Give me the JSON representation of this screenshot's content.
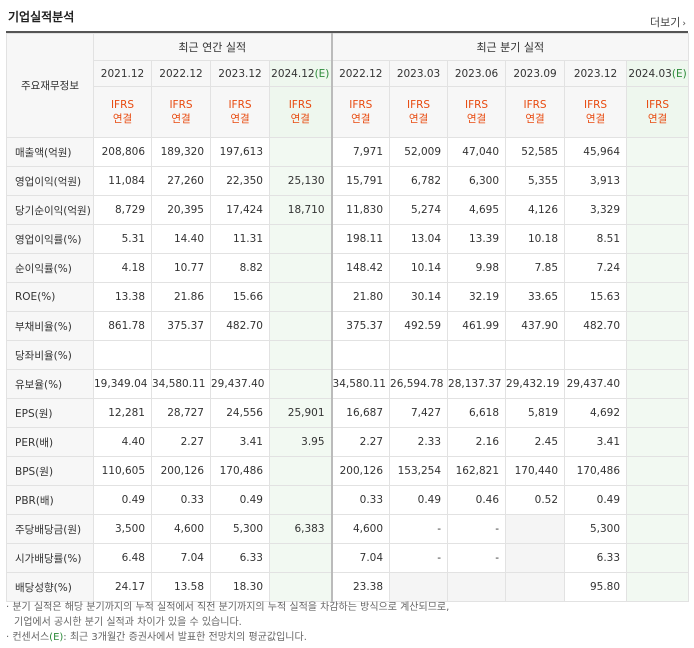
{
  "title": "기업실적분석",
  "more_label": "더보기",
  "header": {
    "row_label": "주요재무정보",
    "annual_group": "최근 연간 실적",
    "quarter_group": "최근 분기 실적",
    "ifrs_line1": "IFRS",
    "ifrs_line2": "연결",
    "annual_periods": [
      {
        "label": "2021.12",
        "est": ""
      },
      {
        "label": "2022.12",
        "est": ""
      },
      {
        "label": "2023.12",
        "est": ""
      },
      {
        "label": "2024.12",
        "est": "(E)"
      }
    ],
    "quarter_periods": [
      {
        "label": "2022.12",
        "est": ""
      },
      {
        "label": "2023.03",
        "est": ""
      },
      {
        "label": "2023.06",
        "est": ""
      },
      {
        "label": "2023.09",
        "est": ""
      },
      {
        "label": "2023.12",
        "est": ""
      },
      {
        "label": "2024.03",
        "est": "(E)"
      }
    ]
  },
  "rows": [
    {
      "label": "매출액(억원)",
      "values": [
        "208,806",
        "189,320",
        "197,613",
        "",
        "7,971",
        "52,009",
        "47,040",
        "52,585",
        "45,964",
        ""
      ]
    },
    {
      "label": "영업이익(억원)",
      "values": [
        "11,084",
        "27,260",
        "22,350",
        "25,130",
        "15,791",
        "6,782",
        "6,300",
        "5,355",
        "3,913",
        ""
      ]
    },
    {
      "label": "당기순이익(억원)",
      "values": [
        "8,729",
        "20,395",
        "17,424",
        "18,710",
        "11,830",
        "5,274",
        "4,695",
        "4,126",
        "3,329",
        ""
      ]
    },
    {
      "label": "영업이익률(%)",
      "values": [
        "5.31",
        "14.40",
        "11.31",
        "",
        "198.11",
        "13.04",
        "13.39",
        "10.18",
        "8.51",
        ""
      ]
    },
    {
      "label": "순이익률(%)",
      "values": [
        "4.18",
        "10.77",
        "8.82",
        "",
        "148.42",
        "10.14",
        "9.98",
        "7.85",
        "7.24",
        ""
      ]
    },
    {
      "label": "ROE(%)",
      "values": [
        "13.38",
        "21.86",
        "15.66",
        "",
        "21.80",
        "30.14",
        "32.19",
        "33.65",
        "15.63",
        ""
      ]
    },
    {
      "label": "부채비율(%)",
      "values": [
        "861.78",
        "375.37",
        "482.70",
        "",
        "375.37",
        "492.59",
        "461.99",
        "437.90",
        "482.70",
        ""
      ]
    },
    {
      "label": "당좌비율(%)",
      "values": [
        "",
        "",
        "",
        "",
        "",
        "",
        "",
        "",
        "",
        ""
      ]
    },
    {
      "label": "유보율(%)",
      "values": [
        "19,349.04",
        "34,580.11",
        "29,437.40",
        "",
        "34,580.11",
        "26,594.78",
        "28,137.37",
        "29,432.19",
        "29,437.40",
        ""
      ]
    },
    {
      "label": "EPS(원)",
      "values": [
        "12,281",
        "28,727",
        "24,556",
        "25,901",
        "16,687",
        "7,427",
        "6,618",
        "5,819",
        "4,692",
        ""
      ]
    },
    {
      "label": "PER(배)",
      "values": [
        "4.40",
        "2.27",
        "3.41",
        "3.95",
        "2.27",
        "2.33",
        "2.16",
        "2.45",
        "3.41",
        ""
      ]
    },
    {
      "label": "BPS(원)",
      "values": [
        "110,605",
        "200,126",
        "170,486",
        "",
        "200,126",
        "153,254",
        "162,821",
        "170,440",
        "170,486",
        ""
      ]
    },
    {
      "label": "PBR(배)",
      "values": [
        "0.49",
        "0.33",
        "0.49",
        "",
        "0.33",
        "0.49",
        "0.46",
        "0.52",
        "0.49",
        ""
      ]
    },
    {
      "label": "주당배당금(원)",
      "values": [
        "3,500",
        "4,600",
        "5,300",
        "6,383",
        "4,600",
        "-",
        "-",
        "",
        "5,300",
        ""
      ]
    },
    {
      "label": "시가배당률(%)",
      "values": [
        "6.48",
        "7.04",
        "6.33",
        "",
        "7.04",
        "-",
        "-",
        "",
        "6.33",
        ""
      ]
    },
    {
      "label": "배당성향(%)",
      "values": [
        "24.17",
        "13.58",
        "18.30",
        "",
        "23.38",
        "",
        "",
        "",
        "95.80",
        ""
      ]
    }
  ],
  "notes": {
    "line1": "· 분기 실적은 해당 분기까지의 누적 실적에서 직전 분기까지의 누적 실적을 차감하는 방식으로 계산되므로,",
    "line2": "기업에서 공시한 분기 실적과 차이가 있을 수 있습니다.",
    "line3_prefix": "· 컨센서스",
    "line3_e": "(E)",
    "line3_suffix": ": 최근 3개월간 증권사에서 발표한 전망치의 평균값입니다."
  }
}
